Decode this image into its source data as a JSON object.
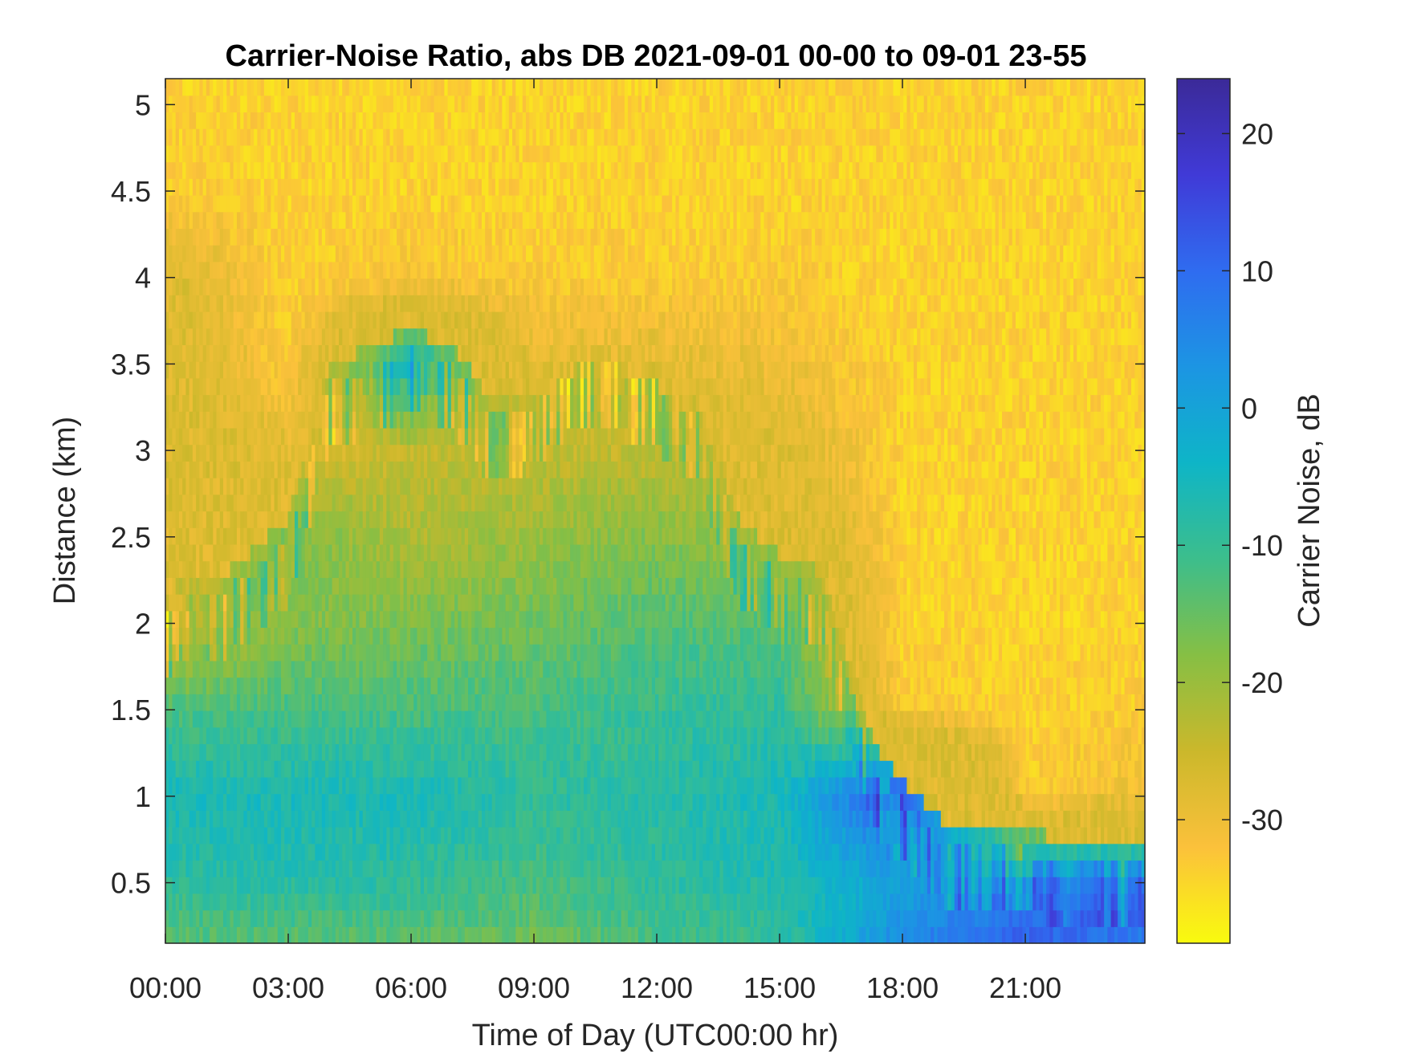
{
  "chart_data": {
    "type": "heatmap",
    "title": "Carrier-Noise Ratio, abs DB 2021-09-01 00-00 to 09-01 23-55",
    "xlabel": "Time of Day (UTC00:00 hr)",
    "ylabel": "Distance (km)",
    "colorbar_label": "Carrier Noise, dB",
    "x_ticks": [
      "00:00",
      "03:00",
      "06:00",
      "09:00",
      "12:00",
      "15:00",
      "18:00",
      "21:00"
    ],
    "x_tick_hours": [
      0,
      3,
      6,
      9,
      12,
      15,
      18,
      21
    ],
    "xlim_hours": [
      0,
      23.92
    ],
    "y_ticks": [
      0.5,
      1,
      1.5,
      2,
      2.5,
      3,
      3.5,
      4,
      4.5,
      5
    ],
    "y_tick_labels": [
      "0.5",
      "1",
      "1.5",
      "2",
      "2.5",
      "3",
      "3.5",
      "4",
      "4.5",
      "5"
    ],
    "ylim_km": [
      0.15,
      5.15
    ],
    "colorbar_ticks": [
      -30,
      -20,
      -10,
      0,
      10,
      20
    ],
    "colorbar_tick_labels": [
      "-30",
      "-20",
      "-10",
      "0",
      "10",
      "20"
    ],
    "clim_db": [
      -39,
      24
    ],
    "colormap": "parula (reversed: yellow = low, dark blue = high)",
    "colormap_stops": [
      "#f9fb0e",
      "#fbc13b",
      "#cbb82b",
      "#86bf44",
      "#3cbe8c",
      "#0eb5c7",
      "#1c95e3",
      "#2f6cf0",
      "#403ad7",
      "#3b2a98"
    ],
    "boundary_layer_top_km": [
      [
        0,
        1.9
      ],
      [
        1.5,
        2.0
      ],
      [
        3,
        2.3
      ],
      [
        4,
        3.2
      ],
      [
        5,
        3.3
      ],
      [
        6,
        3.4
      ],
      [
        7,
        3.3
      ],
      [
        8,
        3.0
      ],
      [
        9,
        3.1
      ],
      [
        10,
        3.3
      ],
      [
        11,
        3.3
      ],
      [
        12,
        3.2
      ],
      [
        13,
        3.0
      ],
      [
        14,
        2.3
      ],
      [
        15,
        2.1
      ],
      [
        16,
        2.0
      ],
      [
        16.8,
        1.4
      ],
      [
        17.3,
        1.0
      ],
      [
        18,
        0.8
      ],
      [
        19,
        0.55
      ],
      [
        20,
        0.5
      ],
      [
        21,
        0.5
      ],
      [
        22,
        0.45
      ],
      [
        23.92,
        0.4
      ]
    ],
    "cn_profiles": [
      {
        "hour": 0,
        "distance_km": [
          0.15,
          0.5,
          1.0,
          1.5,
          2.0,
          2.5,
          3.0,
          3.5,
          4.0,
          4.5,
          5.15
        ],
        "cn_db": [
          -14,
          -9,
          -6,
          -12,
          -28,
          -24,
          -23,
          -24,
          -25,
          -33,
          -34
        ]
      },
      {
        "hour": 3,
        "distance_km": [
          0.15,
          0.5,
          1.0,
          1.5,
          2.0,
          2.5,
          3.0,
          3.5,
          4.0,
          4.5,
          5.15
        ],
        "cn_db": [
          -14,
          -8,
          -6,
          -12,
          -18,
          -17,
          -28,
          -33,
          -34,
          -34,
          -34
        ]
      },
      {
        "hour": 6,
        "distance_km": [
          0.15,
          0.5,
          1.0,
          1.5,
          2.0,
          2.5,
          3.0,
          3.5,
          4.0,
          4.5,
          5.15
        ],
        "cn_db": [
          -14,
          -9,
          -6,
          -12,
          -17,
          -22,
          -24,
          -5,
          -32,
          -34,
          -34
        ]
      },
      {
        "hour": 9,
        "distance_km": [
          0.15,
          0.5,
          1.0,
          1.5,
          2.0,
          2.5,
          3.0,
          3.5,
          4.0,
          4.5,
          5.15
        ],
        "cn_db": [
          -16,
          -12,
          -9,
          -12,
          -16,
          -20,
          -24,
          -28,
          -33,
          -34,
          -34
        ]
      },
      {
        "hour": 12,
        "distance_km": [
          0.15,
          0.5,
          1.0,
          1.5,
          2.0,
          2.5,
          3.0,
          3.5,
          4.0,
          4.5,
          5.15
        ],
        "cn_db": [
          -12,
          -9,
          -8,
          -10,
          -13,
          -18,
          -24,
          -28,
          -33,
          -34,
          -34
        ]
      },
      {
        "hour": 15,
        "distance_km": [
          0.15,
          0.5,
          1.0,
          1.5,
          2.0,
          2.5,
          3.0,
          3.5,
          4.0,
          4.5,
          5.15
        ],
        "cn_db": [
          -10,
          -7,
          -6,
          -9,
          -14,
          -20,
          -26,
          -30,
          -33,
          -34,
          -34
        ]
      },
      {
        "hour": 18,
        "distance_km": [
          0.15,
          0.5,
          1.0,
          1.5,
          2.0,
          2.5,
          3.0,
          3.5,
          4.0,
          4.5,
          5.15
        ],
        "cn_db": [
          5,
          0,
          15,
          -33,
          -34,
          -34,
          -34,
          -34,
          -34,
          -34,
          -34
        ]
      },
      {
        "hour": 21,
        "distance_km": [
          0.15,
          0.5,
          1.0,
          1.5,
          2.0,
          2.5,
          3.0,
          3.5,
          4.0,
          4.5,
          5.15
        ],
        "cn_db": [
          12,
          6,
          -33,
          -34,
          -34,
          -34,
          -34,
          -34,
          -34,
          -34,
          -34
        ]
      },
      {
        "hour": 23.92,
        "distance_km": [
          0.15,
          0.5,
          1.0,
          1.5,
          2.0,
          2.5,
          3.0,
          3.5,
          4.0,
          4.5,
          5.15
        ],
        "cn_db": [
          8,
          4,
          -30,
          -33,
          -34,
          -34,
          -34,
          -34,
          -34,
          -34,
          -34
        ]
      }
    ],
    "grid": false,
    "legend": "colorbar-right"
  }
}
